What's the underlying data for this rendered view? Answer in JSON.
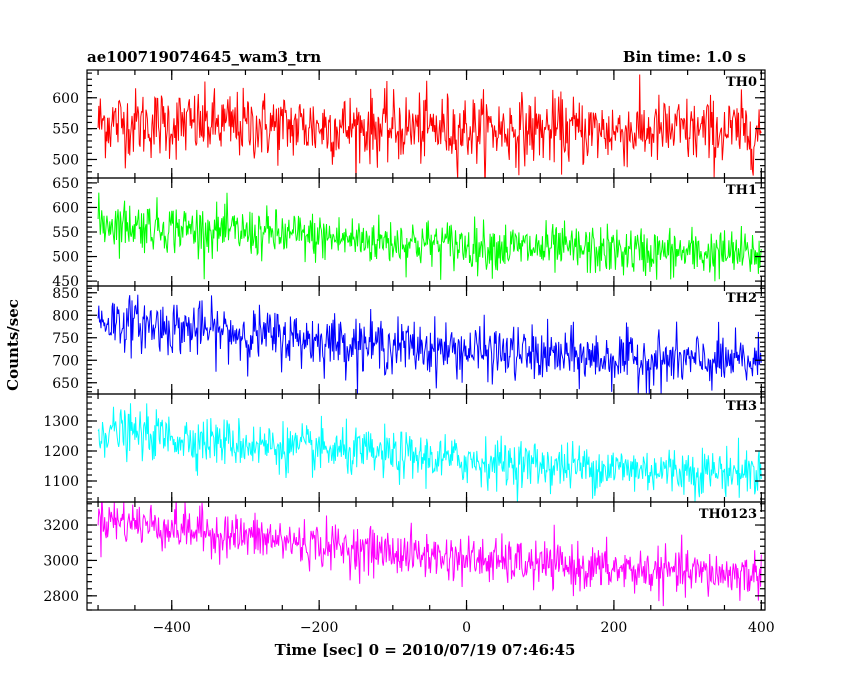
{
  "header": {
    "left_title": "ae100719074645_wam3_trn",
    "right_title": "Bin time: 1.0 s"
  },
  "chart_data": {
    "type": "line",
    "x": {
      "label": "Time [sec] 0 = 2010/07/19 07:46:45",
      "range": [
        -515,
        405
      ],
      "ticks": [
        -400,
        -200,
        0,
        200,
        400
      ],
      "tick_labels": [
        "−400",
        "−200",
        "0",
        "200",
        "400"
      ]
    },
    "ylabel": "Counts/sec",
    "bin_time_s": 1.0,
    "grid": false,
    "panels": [
      {
        "name": "TH0",
        "color": "#ff0000",
        "ylim": [
          470,
          645
        ],
        "ticks": [
          500,
          550,
          600
        ],
        "tick_labels": [
          "500",
          "550",
          "600"
        ],
        "trend": {
          "start": 560,
          "end": 545
        },
        "noise": 28
      },
      {
        "name": "TH1",
        "color": "#00ff00",
        "ylim": [
          440,
          660
        ],
        "ticks": [
          450,
          500,
          550,
          600,
          650
        ],
        "tick_labels": [
          "450",
          "500",
          "550",
          "600",
          "650"
        ],
        "trend": {
          "start": 570,
          "end": 505
        },
        "noise": 25
      },
      {
        "name": "TH2",
        "color": "#0000ff",
        "ylim": [
          625,
          865
        ],
        "ticks": [
          650,
          700,
          750,
          800,
          850
        ],
        "tick_labels": [
          "650",
          "700",
          "750",
          "800",
          "850"
        ],
        "trend": {
          "start": 790,
          "end": 695
        },
        "noise": 30
      },
      {
        "name": "TH3",
        "color": "#00ffff",
        "ylim": [
          1030,
          1390
        ],
        "ticks": [
          1100,
          1200,
          1300
        ],
        "tick_labels": [
          "1100",
          "1200",
          "1300"
        ],
        "trend": {
          "start": 1270,
          "end": 1130
        },
        "noise": 40
      },
      {
        "name": "TH0123",
        "color": "#ff00ff",
        "ylim": [
          2720,
          3330
        ],
        "ticks": [
          2800,
          3000,
          3200
        ],
        "tick_labels": [
          "2800",
          "3000",
          "3200"
        ],
        "trend": {
          "start": 3240,
          "end": 2920
        },
        "noise": 65
      }
    ]
  }
}
